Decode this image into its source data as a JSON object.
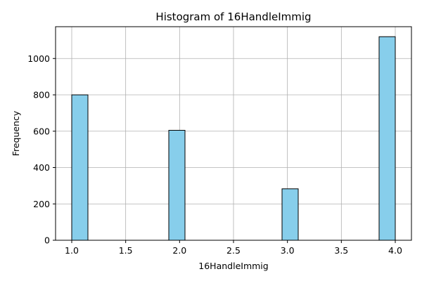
{
  "chart_data": {
    "type": "bar",
    "title": "Histogram of 16HandleImmig",
    "xlabel": "16HandleImmig",
    "ylabel": "Frequency",
    "xlim": [
      0.85,
      4.15
    ],
    "ylim": [
      0,
      1175
    ],
    "xticks": [
      1.0,
      1.5,
      2.0,
      2.5,
      3.0,
      3.5,
      4.0
    ],
    "xtick_labels": [
      "1.0",
      "1.5",
      "2.0",
      "2.5",
      "3.0",
      "3.5",
      "4.0"
    ],
    "yticks": [
      0,
      200,
      400,
      600,
      800,
      1000
    ],
    "ytick_labels": [
      "0",
      "200",
      "400",
      "600",
      "800",
      "1000"
    ],
    "bins": [
      {
        "x_start": 1.0,
        "x_end": 1.15,
        "count": 800
      },
      {
        "x_start": 1.9,
        "x_end": 2.05,
        "count": 605
      },
      {
        "x_start": 2.95,
        "x_end": 3.1,
        "count": 283
      },
      {
        "x_start": 3.85,
        "x_end": 4.0,
        "count": 1120
      }
    ],
    "bar_color": "#87ceeb",
    "edge_color": "#000000",
    "grid": true
  }
}
